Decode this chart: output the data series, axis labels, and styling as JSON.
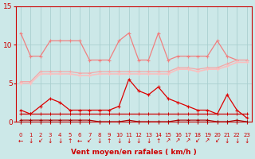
{
  "xlabel": "Vent moyen/en rafales ( km/h )",
  "bg_color": "#cce8e8",
  "grid_color": "#aacfcf",
  "xlim": [
    -0.5,
    23.5
  ],
  "ylim": [
    0,
    15
  ],
  "yticks": [
    0,
    5,
    10,
    15
  ],
  "xticks": [
    0,
    1,
    2,
    3,
    4,
    5,
    6,
    7,
    8,
    9,
    10,
    11,
    12,
    13,
    14,
    15,
    16,
    17,
    18,
    19,
    20,
    21,
    22,
    23
  ],
  "line1_x": [
    0,
    1,
    2,
    3,
    4,
    5,
    6,
    7,
    8,
    9,
    10,
    11,
    12,
    13,
    14,
    15,
    16,
    17,
    18,
    19,
    20,
    21,
    22,
    23
  ],
  "line1_y": [
    11.5,
    8.5,
    8.5,
    10.5,
    10.5,
    10.5,
    10.5,
    8.0,
    8.0,
    8.0,
    10.5,
    11.5,
    8.0,
    8.0,
    11.5,
    8.0,
    8.5,
    8.5,
    8.5,
    8.5,
    10.5,
    8.5,
    8.0,
    8.0
  ],
  "line2_x": [
    0,
    1,
    2,
    3,
    4,
    5,
    6,
    7,
    8,
    9,
    10,
    11,
    12,
    13,
    14,
    15,
    16,
    17,
    18,
    19,
    20,
    21,
    22,
    23
  ],
  "line2_y": [
    5.2,
    5.2,
    6.5,
    6.5,
    6.5,
    6.5,
    6.3,
    6.3,
    6.5,
    6.5,
    6.5,
    6.5,
    6.5,
    6.5,
    6.5,
    6.5,
    7.0,
    7.0,
    6.8,
    7.0,
    7.0,
    7.5,
    8.0,
    8.0
  ],
  "line3_x": [
    0,
    1,
    2,
    3,
    4,
    5,
    6,
    7,
    8,
    9,
    10,
    11,
    12,
    13,
    14,
    15,
    16,
    17,
    18,
    19,
    20,
    21,
    22,
    23
  ],
  "line3_y": [
    5.0,
    5.0,
    6.2,
    6.2,
    6.2,
    6.2,
    6.0,
    6.0,
    6.2,
    6.2,
    6.2,
    6.2,
    6.2,
    6.2,
    6.2,
    6.2,
    6.8,
    6.8,
    6.5,
    6.8,
    6.8,
    7.2,
    7.7,
    7.7
  ],
  "line4_x": [
    0,
    1,
    2,
    3,
    4,
    5,
    6,
    7,
    8,
    9,
    10,
    11,
    12,
    13,
    14,
    15,
    16,
    17,
    18,
    19,
    20,
    21,
    22,
    23
  ],
  "line4_y": [
    1.5,
    1.0,
    2.0,
    3.0,
    2.5,
    1.5,
    1.5,
    1.5,
    1.5,
    1.5,
    2.0,
    5.5,
    4.0,
    3.5,
    4.5,
    3.0,
    2.5,
    2.0,
    1.5,
    1.5,
    1.0,
    3.5,
    1.5,
    0.5
  ],
  "line5_x": [
    0,
    1,
    2,
    3,
    4,
    5,
    6,
    7,
    8,
    9,
    10,
    11,
    12,
    13,
    14,
    15,
    16,
    17,
    18,
    19,
    20,
    21,
    22,
    23
  ],
  "line5_y": [
    1.0,
    1.0,
    1.0,
    1.0,
    1.0,
    1.0,
    1.0,
    1.0,
    1.0,
    1.0,
    1.0,
    1.0,
    1.0,
    1.0,
    1.0,
    1.0,
    1.0,
    1.0,
    1.0,
    1.0,
    1.0,
    1.0,
    1.0,
    1.0
  ],
  "line6_x": [
    0,
    1,
    2,
    3,
    4,
    5,
    6,
    7,
    8,
    9,
    10,
    11,
    12,
    13,
    14,
    15,
    16,
    17,
    18,
    19,
    20,
    21,
    22,
    23
  ],
  "line6_y": [
    0.2,
    0.2,
    0.2,
    0.2,
    0.2,
    0.2,
    0.2,
    0.2,
    0.0,
    0.0,
    0.0,
    0.2,
    0.0,
    0.0,
    0.0,
    0.0,
    0.2,
    0.2,
    0.2,
    0.2,
    0.0,
    0.0,
    0.2,
    0.0
  ],
  "line7_x": [
    0,
    1,
    2,
    3,
    4,
    5,
    6,
    7,
    8,
    9,
    10,
    11,
    12,
    13,
    14,
    15,
    16,
    17,
    18,
    19,
    20,
    21,
    22,
    23
  ],
  "line7_y": [
    0.0,
    0.0,
    0.0,
    0.0,
    0.0,
    0.0,
    0.0,
    0.0,
    0.0,
    0.0,
    0.0,
    0.0,
    0.0,
    0.0,
    0.0,
    0.0,
    0.0,
    0.0,
    0.0,
    0.0,
    0.0,
    0.0,
    0.0,
    0.0
  ],
  "color1": "#f08080",
  "color2": "#f4a8a8",
  "color3": "#f8c0c0",
  "color4": "#dd0000",
  "color5": "#cc0000",
  "color6": "#aa0000",
  "color7": "#880000",
  "arrows": [
    "←",
    "↓",
    "↙",
    "↓",
    "↓",
    "↑",
    "←",
    "↙",
    "↓",
    "↑",
    "↓",
    "↓",
    "↓",
    "↓",
    "↑",
    "↗",
    "↗",
    "↗",
    "↙",
    "↗",
    "↙",
    "↓",
    "↓",
    "↓"
  ],
  "xlabel_color": "#cc0000",
  "tick_color": "#cc0000",
  "spine_color": "#cc0000"
}
